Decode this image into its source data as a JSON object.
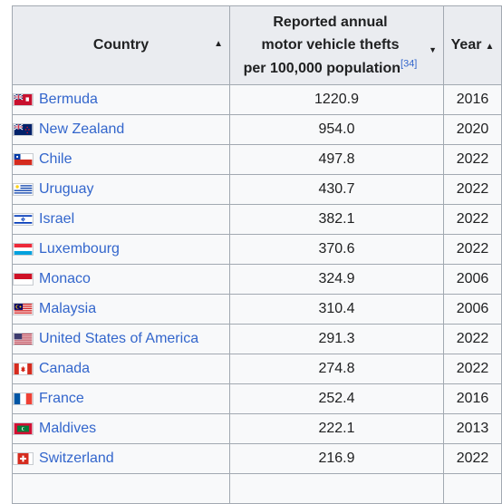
{
  "table": {
    "headers": {
      "country": "Country",
      "rate": [
        "Reported annual",
        "motor vehicle thefts",
        "per 100,000 population"
      ],
      "rate_ref": "[34]",
      "year": "Year"
    },
    "rows": [
      {
        "country": "Bermuda",
        "flag": "bermuda-flag-icon",
        "rate": "1220.9",
        "year": "2016"
      },
      {
        "country": "New Zealand",
        "flag": "new-zealand-flag-icon",
        "rate": "954.0",
        "year": "2020"
      },
      {
        "country": "Chile",
        "flag": "chile-flag-icon",
        "rate": "497.8",
        "year": "2022"
      },
      {
        "country": "Uruguay",
        "flag": "uruguay-flag-icon",
        "rate": "430.7",
        "year": "2022"
      },
      {
        "country": "Israel",
        "flag": "israel-flag-icon",
        "rate": "382.1",
        "year": "2022"
      },
      {
        "country": "Luxembourg",
        "flag": "luxembourg-flag-icon",
        "rate": "370.6",
        "year": "2022"
      },
      {
        "country": "Monaco",
        "flag": "monaco-flag-icon",
        "rate": "324.9",
        "year": "2006"
      },
      {
        "country": "Malaysia",
        "flag": "malaysia-flag-icon",
        "rate": "310.4",
        "year": "2006"
      },
      {
        "country": "United States of America",
        "flag": "usa-flag-icon",
        "rate": "291.3",
        "year": "2022"
      },
      {
        "country": "Canada",
        "flag": "canada-flag-icon",
        "rate": "274.8",
        "year": "2022"
      },
      {
        "country": "France",
        "flag": "france-flag-icon",
        "rate": "252.4",
        "year": "2016"
      },
      {
        "country": "Maldives",
        "flag": "maldives-flag-icon",
        "rate": "222.1",
        "year": "2013"
      },
      {
        "country": "Switzerland",
        "flag": "switzerland-flag-icon",
        "rate": "216.9",
        "year": "2022"
      }
    ]
  },
  "colors": {
    "link": "#3366cc",
    "header_bg": "#eaecf0",
    "cell_bg": "#f8f9fa",
    "border": "#a2a9b1"
  }
}
